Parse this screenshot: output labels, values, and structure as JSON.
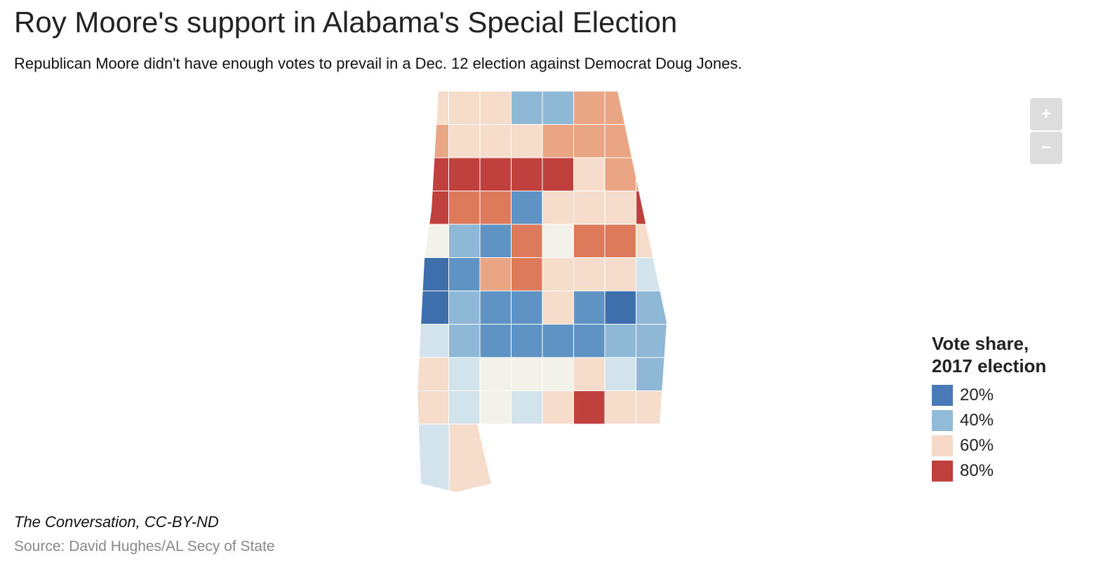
{
  "header": {
    "title": "Roy Moore's support in Alabama's Special Election",
    "subtitle": "Republican Moore didn't have enough votes to prevail in a Dec. 12 election against Democrat Doug Jones."
  },
  "zoom": {
    "in": "+",
    "out": "−"
  },
  "legend": {
    "title": [
      "Vote share,",
      "2017 election"
    ],
    "items": [
      {
        "label": "20%",
        "color": "#4a7ab6"
      },
      {
        "label": "40%",
        "color": "#92bbd9"
      },
      {
        "label": "60%",
        "color": "#f6d9c8"
      },
      {
        "label": "80%",
        "color": "#c0403e"
      }
    ]
  },
  "footer": {
    "credit": "The Conversation, CC-BY-ND",
    "source": "Source: David Hughes/AL Secy of State"
  }
}
